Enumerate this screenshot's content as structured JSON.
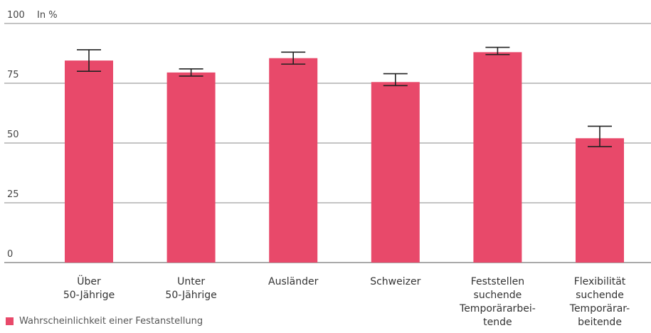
{
  "chart_data": {
    "type": "bar",
    "unit_label": "In %",
    "y_ticks": [
      "100",
      "75",
      "50",
      "25",
      "0"
    ],
    "ylim": [
      0,
      100
    ],
    "grid": true,
    "categories": [
      [
        "Über",
        "50-Jährige"
      ],
      [
        "Unter",
        "50-Jährige"
      ],
      [
        "Ausländer"
      ],
      [
        "Schweizer"
      ],
      [
        "Feststellen",
        "suchende",
        "Temporärarbei-",
        "tende"
      ],
      [
        "Flexibilität",
        "suchende",
        "Temporärar-",
        "beitende"
      ]
    ],
    "series": [
      {
        "name": "Wahrscheinlichkeit einer Festanstellung",
        "color": "#e8496a",
        "values": [
          84.5,
          79.5,
          85.5,
          75.5,
          88.0,
          52.0
        ],
        "error_low": [
          80.0,
          78.0,
          83.0,
          74.0,
          87.0,
          48.5
        ],
        "error_high": [
          89.0,
          81.0,
          88.0,
          79.0,
          90.0,
          57.0
        ]
      }
    ],
    "legend_position": "bottom-left"
  }
}
